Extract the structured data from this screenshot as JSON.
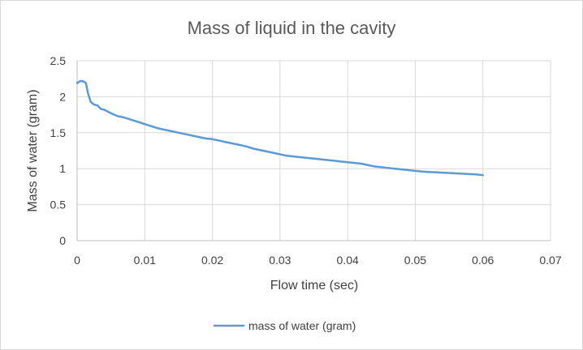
{
  "chart_data": {
    "type": "line",
    "title": "Mass of liquid in the cavity",
    "xlabel": "Flow time (sec)",
    "ylabel": "Mass of water (gram)",
    "xlim": [
      0,
      0.07
    ],
    "ylim": [
      0,
      2.5
    ],
    "x_ticks": [
      "0",
      "0.01",
      "0.02",
      "0.03",
      "0.04",
      "0.05",
      "0.06",
      "0.07"
    ],
    "y_ticks": [
      "0",
      "0.5",
      "1",
      "1.5",
      "2",
      "2.5"
    ],
    "grid": "vertical and horizontal major gridlines",
    "legend_position": "bottom",
    "series": [
      {
        "name": "mass of water (gram)",
        "color": "#5b9bd5",
        "x": [
          0,
          0.0005,
          0.001,
          0.0013,
          0.0016,
          0.002,
          0.0025,
          0.003,
          0.0035,
          0.004,
          0.005,
          0.006,
          0.007,
          0.008,
          0.009,
          0.01,
          0.011,
          0.012,
          0.013,
          0.014,
          0.015,
          0.016,
          0.017,
          0.018,
          0.019,
          0.02,
          0.021,
          0.022,
          0.023,
          0.024,
          0.025,
          0.026,
          0.027,
          0.028,
          0.029,
          0.03,
          0.031,
          0.032,
          0.033,
          0.034,
          0.035,
          0.036,
          0.037,
          0.038,
          0.039,
          0.04,
          0.041,
          0.042,
          0.043,
          0.044,
          0.045,
          0.046,
          0.047,
          0.048,
          0.049,
          0.05,
          0.051,
          0.052,
          0.053,
          0.054,
          0.055,
          0.056,
          0.057,
          0.058,
          0.059,
          0.06
        ],
        "y": [
          2.19,
          2.22,
          2.21,
          2.19,
          2.05,
          1.93,
          1.89,
          1.88,
          1.83,
          1.82,
          1.77,
          1.73,
          1.71,
          1.68,
          1.65,
          1.62,
          1.59,
          1.56,
          1.54,
          1.52,
          1.5,
          1.48,
          1.46,
          1.44,
          1.42,
          1.41,
          1.39,
          1.37,
          1.35,
          1.33,
          1.31,
          1.28,
          1.26,
          1.24,
          1.22,
          1.2,
          1.18,
          1.17,
          1.16,
          1.15,
          1.14,
          1.13,
          1.12,
          1.11,
          1.1,
          1.09,
          1.08,
          1.07,
          1.05,
          1.03,
          1.02,
          1.01,
          1.0,
          0.99,
          0.98,
          0.97,
          0.96,
          0.955,
          0.95,
          0.945,
          0.94,
          0.935,
          0.93,
          0.925,
          0.92,
          0.91
        ]
      }
    ]
  }
}
